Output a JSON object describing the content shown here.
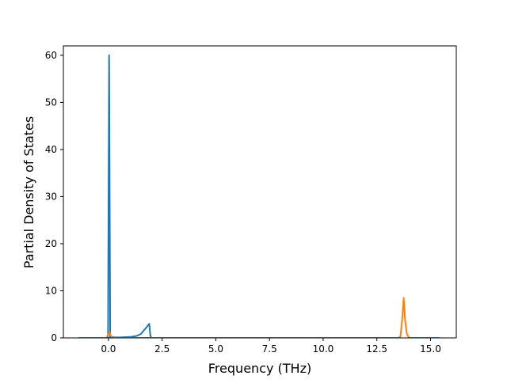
{
  "chart_data": {
    "type": "line",
    "title": "",
    "xlabel": "Frequency (THz)",
    "ylabel": "Partial Density of States",
    "xlim": [
      -2.1,
      16.2
    ],
    "ylim": [
      0,
      62
    ],
    "xticks": [
      0.0,
      2.5,
      5.0,
      7.5,
      10.0,
      12.5,
      15.0
    ],
    "xtick_labels": [
      "0.0",
      "2.5",
      "5.0",
      "7.5",
      "10.0",
      "12.5",
      "15.0"
    ],
    "yticks": [
      0,
      10,
      20,
      30,
      40,
      50,
      60
    ],
    "ytick_labels": [
      "0",
      "10",
      "20",
      "30",
      "40",
      "50",
      "60"
    ],
    "grid": false,
    "legend": "none",
    "series": [
      {
        "color": "#1f77b4",
        "x": [
          -0.15,
          -0.02,
          0.03,
          0.08,
          0.12,
          0.17,
          0.25,
          0.5,
          1.0,
          1.3,
          1.5,
          1.65,
          1.8,
          1.9,
          1.95,
          2.0
        ],
        "y": [
          0,
          0,
          60,
          0,
          0,
          0.2,
          0.1,
          0.1,
          0.2,
          0.4,
          0.8,
          1.6,
          2.4,
          3.0,
          0.5,
          0
        ]
      },
      {
        "color": "#ff7f0e",
        "x": [
          -1.4,
          -0.1,
          0.0,
          0.05,
          0.1,
          0.2,
          13.5,
          13.6,
          13.68,
          13.75,
          13.82,
          13.9,
          14.0,
          15.4
        ],
        "y": [
          0,
          0,
          0.8,
          1.3,
          0.5,
          0,
          0,
          0.3,
          4.0,
          8.5,
          3.5,
          0.8,
          0,
          0
        ]
      }
    ]
  }
}
